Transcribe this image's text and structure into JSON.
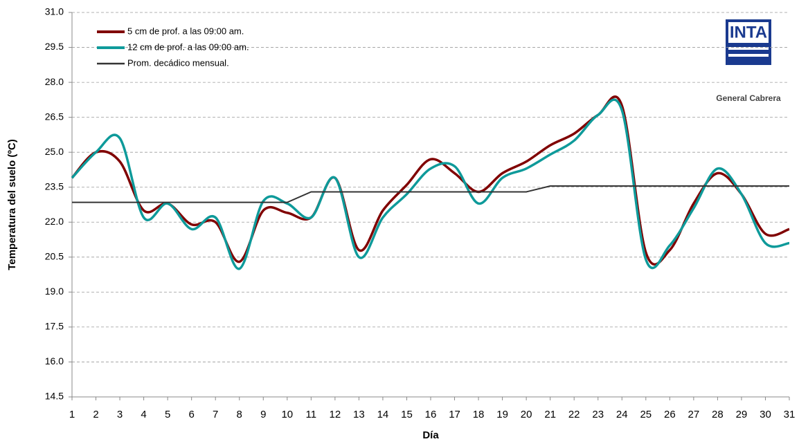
{
  "chart_data": {
    "type": "line",
    "x_label": "Día",
    "y_label": "Temperatura del suelo (ºC)",
    "x": [
      1,
      2,
      3,
      4,
      5,
      6,
      7,
      8,
      9,
      10,
      11,
      12,
      13,
      14,
      15,
      16,
      17,
      18,
      19,
      20,
      21,
      22,
      23,
      24,
      25,
      26,
      27,
      28,
      29,
      30,
      31
    ],
    "xlim": [
      1,
      31
    ],
    "xticks": [
      1,
      2,
      3,
      4,
      5,
      6,
      7,
      8,
      9,
      10,
      11,
      12,
      13,
      14,
      15,
      16,
      17,
      18,
      19,
      20,
      21,
      22,
      23,
      24,
      25,
      26,
      27,
      28,
      29,
      30,
      31
    ],
    "ylim": [
      14.5,
      31
    ],
    "yticks": [
      14.5,
      {
        "value": 16,
        "label": "16.0"
      },
      17.5,
      {
        "value": 19,
        "label": "19.0"
      },
      20.5,
      {
        "value": 22,
        "label": "22.0"
      },
      23.5,
      {
        "value": 25,
        "label": "25.0"
      },
      26.5,
      {
        "value": 28,
        "label": "28.0"
      },
      29.5,
      {
        "value": 31,
        "label": "31.0"
      }
    ],
    "grid": true,
    "legend": "top-left",
    "series": [
      {
        "name": "5 cm de prof. a las 09:00 am.",
        "color": "#800000",
        "smooth": true,
        "values": [
          23.9,
          25.0,
          24.6,
          22.5,
          22.8,
          21.9,
          22.0,
          20.3,
          22.5,
          22.4,
          22.2,
          23.9,
          20.8,
          22.5,
          23.6,
          24.7,
          24.1,
          23.3,
          24.1,
          24.6,
          25.3,
          25.8,
          26.6,
          27.0,
          20.7,
          20.8,
          22.8,
          24.1,
          23.2,
          21.5,
          21.7
        ]
      },
      {
        "name": "12 cm de prof. a las 09:00 am.",
        "color": "#0e9a9a",
        "smooth": true,
        "values": [
          23.9,
          25.0,
          25.6,
          22.2,
          22.8,
          21.7,
          22.2,
          20.0,
          22.9,
          22.8,
          22.2,
          23.9,
          20.5,
          22.2,
          23.2,
          24.3,
          24.4,
          22.8,
          23.9,
          24.3,
          24.9,
          25.5,
          26.6,
          26.8,
          20.4,
          21.0,
          22.6,
          24.3,
          23.2,
          21.1,
          21.1
        ]
      },
      {
        "name": "Prom. decádico mensual.",
        "color": "#333333",
        "smooth": false,
        "values": [
          22.85,
          22.85,
          22.85,
          22.85,
          22.85,
          22.85,
          22.85,
          22.85,
          22.85,
          22.85,
          23.3,
          23.3,
          23.3,
          23.3,
          23.3,
          23.3,
          23.3,
          23.3,
          23.3,
          23.3,
          23.55,
          23.55,
          23.55,
          23.55,
          23.55,
          23.55,
          23.55,
          23.55,
          23.55,
          23.55,
          23.55
        ]
      }
    ]
  },
  "logo": {
    "text": "INTA",
    "caption": "General Cabrera"
  }
}
